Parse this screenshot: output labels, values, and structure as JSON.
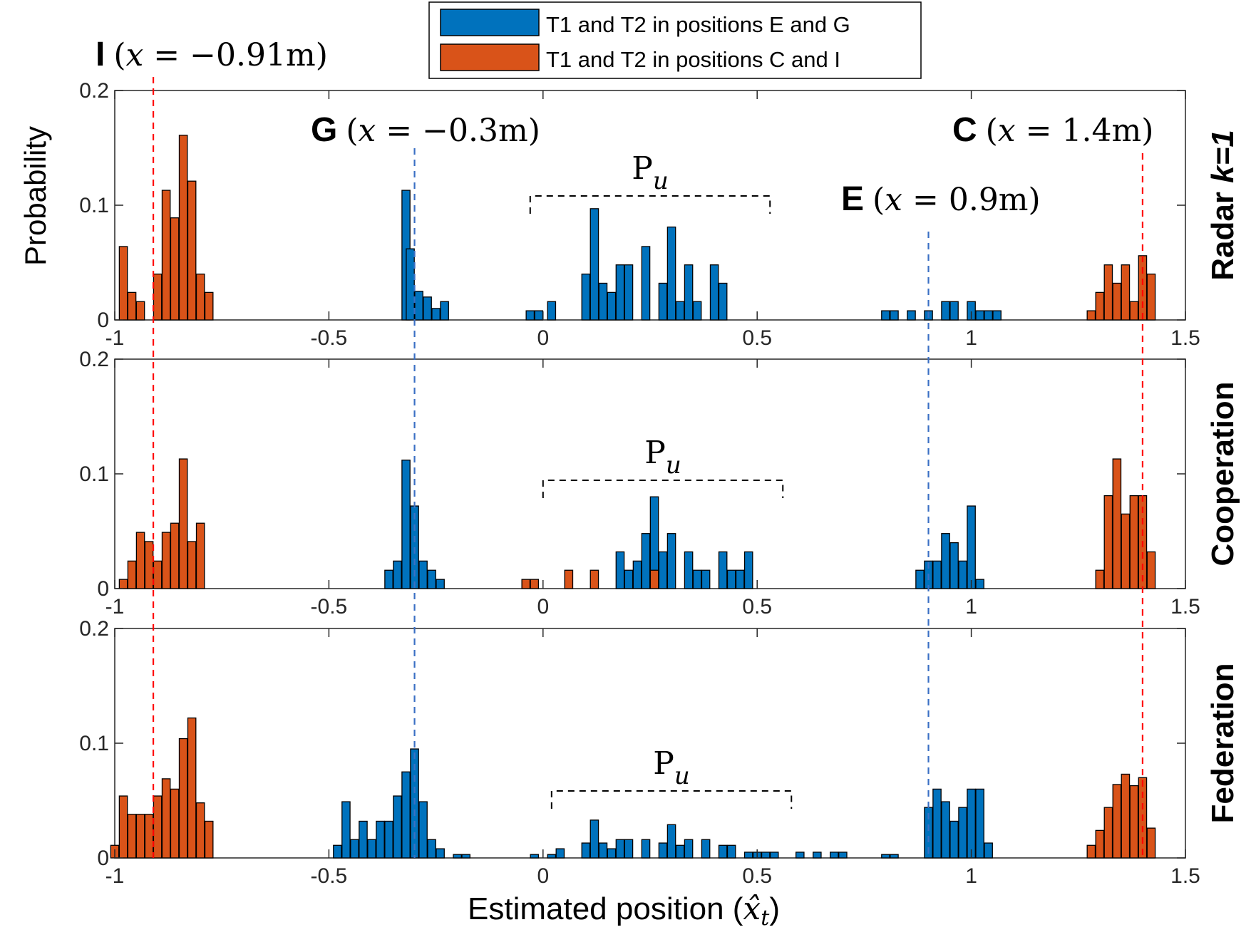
{
  "figure": {
    "y_axis_label": "Probability",
    "x_axis_label_text": "Estimated position (",
    "x_axis_label_symbol": "x̂",
    "x_axis_label_sub": "t",
    "x_axis_label_close": ")"
  },
  "legend": {
    "entries": [
      {
        "label": "T1 and T2 in positions E and G",
        "color": "#0072BD"
      },
      {
        "label": "T1 and T2 in positions C and I",
        "color": "#D95319"
      }
    ]
  },
  "colors": {
    "blue": "#0072BD",
    "orange": "#D95319",
    "red_dash": "#FF0000",
    "blue_dash": "#3A6FC4"
  },
  "position_markers": [
    {
      "letter": "I",
      "math": "(𝑥 = −0.91m)",
      "x": -0.91,
      "style": "red"
    },
    {
      "letter": "G",
      "math": "(𝑥 = −0.3m)",
      "x": -0.3,
      "style": "blue"
    },
    {
      "letter": "C",
      "math": "(𝑥 = 1.4m)",
      "x": 1.4,
      "style": "red"
    },
    {
      "letter": "E",
      "math": "(𝑥 = 0.9m)",
      "x": 0.9,
      "style": "blue"
    }
  ],
  "pu_label": {
    "main": "P",
    "sub": "u"
  },
  "chart_data": [
    {
      "type": "bar",
      "panel": "Radar k=1",
      "panel_label_main": "Radar ",
      "panel_label_k": "k=1",
      "xlim": [
        -1,
        1.5
      ],
      "ylim": [
        0,
        0.2
      ],
      "xticks": [
        "-1",
        "-0.5",
        "0",
        "0.5",
        "1",
        "1.5"
      ],
      "yticks": [
        "0",
        "0.1",
        "0.2"
      ],
      "pu_bracket": [
        -0.03,
        0.53
      ],
      "series": [
        {
          "name": "T1 and T2 in positions E and G",
          "x": [
            -0.32,
            -0.31,
            -0.29,
            -0.27,
            -0.25,
            -0.23,
            -0.03,
            -0.01,
            0.02,
            0.1,
            0.12,
            0.14,
            0.16,
            0.18,
            0.2,
            0.24,
            0.28,
            0.3,
            0.32,
            0.34,
            0.36,
            0.4,
            0.42,
            0.8,
            0.82,
            0.86,
            0.9,
            0.94,
            0.96,
            1.0,
            1.02,
            1.04,
            1.06
          ],
          "values": [
            0.113,
            0.062,
            0.025,
            0.02,
            0.01,
            0.016,
            0.008,
            0.008,
            0.016,
            0.04,
            0.097,
            0.032,
            0.024,
            0.048,
            0.048,
            0.064,
            0.032,
            0.081,
            0.016,
            0.048,
            0.016,
            0.048,
            0.032,
            0.008,
            0.008,
            0.008,
            0.008,
            0.016,
            0.016,
            0.016,
            0.008,
            0.008,
            0.008
          ]
        },
        {
          "name": "T1 and T2 in positions C and I",
          "x": [
            -0.98,
            -0.96,
            -0.94,
            -0.9,
            -0.88,
            -0.86,
            -0.84,
            -0.82,
            -0.8,
            -0.78,
            1.28,
            1.3,
            1.32,
            1.34,
            1.36,
            1.38,
            1.4,
            1.42
          ],
          "values": [
            0.064,
            0.024,
            0.016,
            0.04,
            0.113,
            0.089,
            0.161,
            0.121,
            0.04,
            0.024,
            0.008,
            0.024,
            0.048,
            0.032,
            0.048,
            0.016,
            0.056,
            0.04
          ]
        }
      ]
    },
    {
      "type": "bar",
      "panel": "Cooperation",
      "panel_label_main": "Cooperation",
      "panel_label_k": "",
      "xlim": [
        -1,
        1.5
      ],
      "ylim": [
        0,
        0.2
      ],
      "xticks": [
        "-1",
        "-0.5",
        "0",
        "0.5",
        "1",
        "1.5"
      ],
      "yticks": [
        "0",
        "0.1",
        "0.2"
      ],
      "pu_bracket": [
        0.0,
        0.56
      ],
      "series": [
        {
          "name": "T1 and T2 in positions E and G",
          "x": [
            -0.36,
            -0.34,
            -0.32,
            -0.3,
            -0.28,
            -0.26,
            -0.24,
            0.18,
            0.2,
            0.22,
            0.24,
            0.26,
            0.28,
            0.3,
            0.34,
            0.36,
            0.38,
            0.42,
            0.44,
            0.46,
            0.48,
            0.88,
            0.9,
            0.92,
            0.94,
            0.96,
            0.98,
            1.0,
            1.02
          ],
          "values": [
            0.016,
            0.024,
            0.112,
            0.072,
            0.024,
            0.016,
            0.008,
            0.032,
            0.016,
            0.024,
            0.048,
            0.08,
            0.032,
            0.048,
            0.032,
            0.016,
            0.016,
            0.032,
            0.016,
            0.016,
            0.032,
            0.016,
            0.024,
            0.024,
            0.048,
            0.04,
            0.024,
            0.072,
            0.008
          ]
        },
        {
          "name": "T1 and T2 in positions C and I",
          "x": [
            -0.98,
            -0.96,
            -0.94,
            -0.92,
            -0.9,
            -0.88,
            -0.86,
            -0.84,
            -0.82,
            -0.8,
            -0.04,
            -0.02,
            0.06,
            0.12,
            0.26,
            1.3,
            1.32,
            1.34,
            1.36,
            1.38,
            1.4,
            1.42
          ],
          "values": [
            0.008,
            0.024,
            0.049,
            0.041,
            0.024,
            0.049,
            0.057,
            0.113,
            0.041,
            0.057,
            0.008,
            0.008,
            0.016,
            0.016,
            0.016,
            0.016,
            0.081,
            0.113,
            0.065,
            0.081,
            0.081,
            0.032
          ]
        }
      ]
    },
    {
      "type": "bar",
      "panel": "Federation",
      "panel_label_main": "Federation",
      "panel_label_k": "",
      "xlim": [
        -1,
        1.5
      ],
      "ylim": [
        0,
        0.2
      ],
      "xticks": [
        "-1",
        "-0.5",
        "0",
        "0.5",
        "1",
        "1.5"
      ],
      "yticks": [
        "0",
        "0.1",
        "0.2"
      ],
      "pu_bracket": [
        0.02,
        0.58
      ],
      "series": [
        {
          "name": "T1 and T2 in positions E and G",
          "x": [
            -0.48,
            -0.46,
            -0.44,
            -0.42,
            -0.4,
            -0.38,
            -0.36,
            -0.34,
            -0.32,
            -0.3,
            -0.28,
            -0.26,
            -0.24,
            -0.2,
            -0.18,
            -0.02,
            0.02,
            0.04,
            0.1,
            0.12,
            0.14,
            0.16,
            0.18,
            0.2,
            0.24,
            0.28,
            0.3,
            0.32,
            0.34,
            0.38,
            0.42,
            0.44,
            0.48,
            0.5,
            0.52,
            0.54,
            0.6,
            0.64,
            0.68,
            0.7,
            0.8,
            0.82,
            0.9,
            0.92,
            0.94,
            0.96,
            0.98,
            1.0,
            1.02,
            1.04
          ],
          "values": [
            0.011,
            0.049,
            0.016,
            0.032,
            0.016,
            0.032,
            0.032,
            0.054,
            0.075,
            0.095,
            0.049,
            0.016,
            0.008,
            0.003,
            0.003,
            0.003,
            0.003,
            0.008,
            0.013,
            0.033,
            0.013,
            0.008,
            0.016,
            0.016,
            0.016,
            0.013,
            0.029,
            0.011,
            0.016,
            0.016,
            0.011,
            0.011,
            0.005,
            0.005,
            0.005,
            0.005,
            0.005,
            0.005,
            0.005,
            0.005,
            0.003,
            0.003,
            0.044,
            0.06,
            0.049,
            0.032,
            0.044,
            0.06,
            0.06,
            0.013
          ]
        },
        {
          "name": "T1 and T2 in positions C and I",
          "x": [
            -1.0,
            -0.98,
            -0.96,
            -0.94,
            -0.92,
            -0.9,
            -0.88,
            -0.86,
            -0.84,
            -0.82,
            -0.8,
            -0.78,
            1.28,
            1.3,
            1.32,
            1.34,
            1.36,
            1.38,
            1.4,
            1.42
          ],
          "values": [
            0.011,
            0.054,
            0.038,
            0.038,
            0.038,
            0.054,
            0.069,
            0.06,
            0.104,
            0.122,
            0.048,
            0.032,
            0.011,
            0.024,
            0.044,
            0.064,
            0.073,
            0.063,
            0.07,
            0.026
          ]
        }
      ]
    }
  ]
}
